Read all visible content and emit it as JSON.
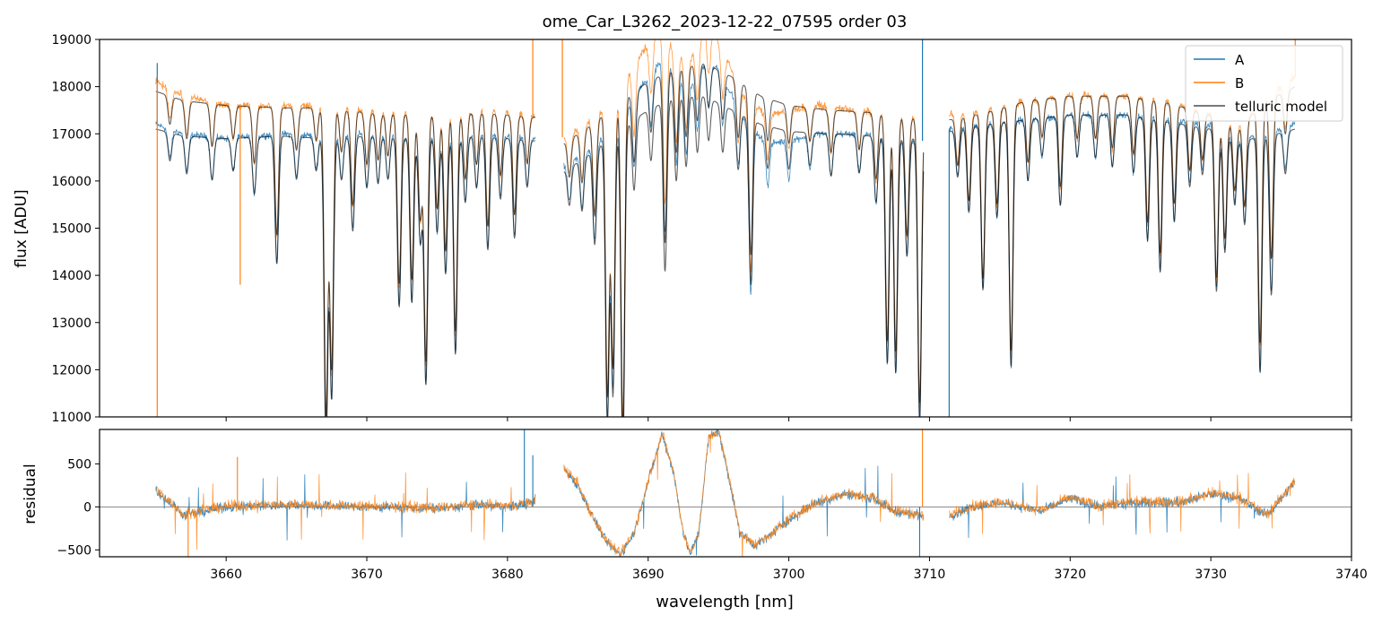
{
  "chart_data": [
    {
      "type": "line",
      "title": "ome_Car_L3262_2023-12-22_07595  order 03",
      "xlabel": "",
      "ylabel": "flux [ADU]",
      "xlim": [
        3651,
        3740
      ],
      "ylim": [
        11000,
        19000
      ],
      "yticks": [
        11000,
        12000,
        13000,
        14000,
        15000,
        16000,
        17000,
        18000,
        19000
      ],
      "xticks": [
        3660,
        3670,
        3680,
        3690,
        3700,
        3710,
        3720,
        3730,
        3740
      ],
      "legend_position": "top-right",
      "legend": [
        "A",
        "B",
        "telluric model"
      ],
      "colors": {
        "A": "#1f77b4",
        "B": "#ff7f0e",
        "model": "#000000"
      },
      "continuum_A": [
        [
          3655.0,
          17200
        ],
        [
          3657.0,
          17000
        ],
        [
          3660.0,
          16900
        ],
        [
          3664.0,
          17000
        ],
        [
          3667.0,
          16950
        ],
        [
          3670.0,
          17000
        ],
        [
          3674.0,
          16900
        ],
        [
          3678.0,
          17000
        ],
        [
          3682.0,
          16900
        ],
        [
          3684.0,
          16300
        ],
        [
          3686.0,
          16700
        ],
        [
          3688.0,
          17300
        ],
        [
          3689.0,
          17800
        ],
        [
          3690.0,
          18200
        ],
        [
          3691.0,
          18600
        ],
        [
          3692.0,
          18200
        ],
        [
          3693.0,
          18000
        ],
        [
          3694.0,
          18500
        ],
        [
          3695.0,
          18400
        ],
        [
          3696.0,
          17800
        ],
        [
          3697.0,
          17200
        ],
        [
          3698.5,
          16800
        ],
        [
          3700.0,
          16850
        ],
        [
          3702.0,
          17000
        ],
        [
          3705.0,
          17000
        ],
        [
          3707.0,
          16900
        ],
        [
          3709.5,
          16850
        ],
        [
          3711.5,
          17100
        ],
        [
          3714.0,
          17200
        ],
        [
          3717.0,
          17300
        ],
        [
          3720.0,
          17400
        ],
        [
          3724.0,
          17400
        ],
        [
          3727.0,
          17300
        ],
        [
          3730.0,
          17200
        ],
        [
          3732.0,
          16900
        ],
        [
          3734.0,
          17000
        ],
        [
          3736.0,
          17200
        ]
      ],
      "continuum_B": [
        [
          3655.0,
          18100
        ],
        [
          3657.0,
          17800
        ],
        [
          3660.0,
          17600
        ],
        [
          3664.0,
          17600
        ],
        [
          3667.0,
          17600
        ],
        [
          3670.0,
          17500
        ],
        [
          3674.0,
          17400
        ],
        [
          3678.0,
          17500
        ],
        [
          3682.0,
          17400
        ],
        [
          3684.0,
          16900
        ],
        [
          3686.0,
          17300
        ],
        [
          3688.0,
          17900
        ],
        [
          3689.0,
          18500
        ],
        [
          3690.0,
          18900
        ],
        [
          3691.0,
          19300
        ],
        [
          3692.0,
          18700
        ],
        [
          3693.0,
          18600
        ],
        [
          3694.0,
          19300
        ],
        [
          3695.0,
          19000
        ],
        [
          3696.0,
          18300
        ],
        [
          3697.0,
          17700
        ],
        [
          3698.5,
          17400
        ],
        [
          3700.0,
          17500
        ],
        [
          3702.0,
          17600
        ],
        [
          3705.0,
          17500
        ],
        [
          3707.0,
          17400
        ],
        [
          3709.5,
          17300
        ],
        [
          3711.5,
          17400
        ],
        [
          3714.0,
          17500
        ],
        [
          3717.0,
          17700
        ],
        [
          3720.0,
          17800
        ],
        [
          3724.0,
          17800
        ],
        [
          3727.0,
          17700
        ],
        [
          3730.0,
          17400
        ],
        [
          3732.0,
          17200
        ],
        [
          3734.0,
          17800
        ],
        [
          3736.0,
          18200
        ]
      ],
      "continuum_model_B": [
        [
          3655.0,
          17900
        ],
        [
          3657.0,
          17700
        ],
        [
          3660.0,
          17600
        ],
        [
          3664.0,
          17550
        ],
        [
          3667.0,
          17550
        ],
        [
          3670.0,
          17450
        ],
        [
          3674.0,
          17400
        ],
        [
          3678.0,
          17450
        ],
        [
          3682.0,
          17350
        ],
        [
          3684.0,
          16800
        ],
        [
          3686.0,
          17200
        ],
        [
          3688.0,
          17700
        ],
        [
          3690.0,
          18100
        ],
        [
          3692.0,
          18400
        ],
        [
          3694.0,
          18500
        ],
        [
          3696.0,
          18200
        ],
        [
          3698.0,
          17800
        ],
        [
          3700.0,
          17600
        ],
        [
          3703.0,
          17500
        ],
        [
          3706.0,
          17450
        ],
        [
          3709.5,
          17300
        ],
        [
          3711.5,
          17300
        ],
        [
          3714.0,
          17450
        ],
        [
          3717.0,
          17700
        ],
        [
          3720.0,
          17800
        ],
        [
          3724.0,
          17800
        ],
        [
          3727.0,
          17650
        ],
        [
          3730.0,
          17400
        ],
        [
          3732.0,
          17150
        ],
        [
          3734.0,
          17700
        ],
        [
          3736.0,
          18000
        ]
      ],
      "continuum_model_A": [
        [
          3655.0,
          17100
        ],
        [
          3657.0,
          16950
        ],
        [
          3660.0,
          16900
        ],
        [
          3664.0,
          16950
        ],
        [
          3667.0,
          16900
        ],
        [
          3670.0,
          16950
        ],
        [
          3674.0,
          16900
        ],
        [
          3678.0,
          16950
        ],
        [
          3682.0,
          16850
        ],
        [
          3684.0,
          16200
        ],
        [
          3686.0,
          16600
        ],
        [
          3688.0,
          17100
        ],
        [
          3690.0,
          17500
        ],
        [
          3692.0,
          17800
        ],
        [
          3694.0,
          17800
        ],
        [
          3696.0,
          17500
        ],
        [
          3698.0,
          17200
        ],
        [
          3700.0,
          17050
        ],
        [
          3703.0,
          17000
        ],
        [
          3706.0,
          16950
        ],
        [
          3709.5,
          16900
        ],
        [
          3711.5,
          17050
        ],
        [
          3714.0,
          17200
        ],
        [
          3717.0,
          17300
        ],
        [
          3720.0,
          17400
        ],
        [
          3724.0,
          17400
        ],
        [
          3727.0,
          17250
        ],
        [
          3730.0,
          17100
        ],
        [
          3732.0,
          16850
        ],
        [
          3734.0,
          16950
        ],
        [
          3736.0,
          17100
        ]
      ],
      "gaps": [
        [
          3682.0,
          3684.0
        ],
        [
          3709.6,
          3711.4
        ]
      ],
      "absorption_lines": [
        [
          3656.0,
          600
        ],
        [
          3657.2,
          800
        ],
        [
          3659.0,
          900
        ],
        [
          3660.5,
          700
        ],
        [
          3662.0,
          1200
        ],
        [
          3663.6,
          2700
        ],
        [
          3665.0,
          900
        ],
        [
          3666.4,
          700
        ],
        [
          3667.1,
          6500
        ],
        [
          3667.5,
          5500
        ],
        [
          3668.2,
          900
        ],
        [
          3669.0,
          2000
        ],
        [
          3670.0,
          1100
        ],
        [
          3670.8,
          1000
        ],
        [
          3671.5,
          900
        ],
        [
          3672.3,
          3600
        ],
        [
          3673.2,
          3500
        ],
        [
          3673.8,
          2200
        ],
        [
          3674.2,
          5200
        ],
        [
          3675.0,
          2000
        ],
        [
          3675.6,
          2900
        ],
        [
          3676.3,
          4600
        ],
        [
          3677.0,
          1400
        ],
        [
          3677.8,
          1100
        ],
        [
          3678.6,
          2400
        ],
        [
          3679.5,
          1300
        ],
        [
          3680.5,
          2100
        ],
        [
          3681.4,
          1000
        ],
        [
          3684.4,
          800
        ],
        [
          3685.3,
          1100
        ],
        [
          3686.2,
          2000
        ],
        [
          3687.1,
          6000
        ],
        [
          3687.5,
          5500
        ],
        [
          3688.2,
          7000
        ],
        [
          3689.0,
          1500
        ],
        [
          3690.2,
          1100
        ],
        [
          3691.2,
          3600
        ],
        [
          3692.0,
          1800
        ],
        [
          3692.7,
          1500
        ],
        [
          3693.5,
          1200
        ],
        [
          3694.3,
          900
        ],
        [
          3695.3,
          1000
        ],
        [
          3696.4,
          1200
        ],
        [
          3697.3,
          3500
        ],
        [
          3698.5,
          900
        ],
        [
          3700.0,
          800
        ],
        [
          3701.5,
          700
        ],
        [
          3703.0,
          900
        ],
        [
          3705.0,
          800
        ],
        [
          3706.2,
          1400
        ],
        [
          3707.0,
          4800
        ],
        [
          3707.6,
          5000
        ],
        [
          3708.4,
          2500
        ],
        [
          3709.3,
          6000
        ],
        [
          3712.0,
          1000
        ],
        [
          3712.8,
          1800
        ],
        [
          3713.8,
          3500
        ],
        [
          3714.8,
          2000
        ],
        [
          3715.8,
          5200
        ],
        [
          3717.0,
          1300
        ],
        [
          3718.0,
          800
        ],
        [
          3719.3,
          1900
        ],
        [
          3720.5,
          900
        ],
        [
          3721.8,
          900
        ],
        [
          3723.0,
          1100
        ],
        [
          3724.5,
          1200
        ],
        [
          3725.5,
          2600
        ],
        [
          3726.4,
          3200
        ],
        [
          3727.4,
          2100
        ],
        [
          3728.5,
          1300
        ],
        [
          3729.4,
          1000
        ],
        [
          3730.4,
          3400
        ],
        [
          3731.0,
          2500
        ],
        [
          3731.7,
          1400
        ],
        [
          3732.4,
          1800
        ],
        [
          3733.5,
          5000
        ],
        [
          3734.3,
          3400
        ],
        [
          3735.3,
          900
        ]
      ],
      "spikes": [
        {
          "x": 3655.1,
          "series": "A",
          "y": 18500
        },
        {
          "x": 3655.1,
          "series": "B",
          "y": 11000
        },
        {
          "x": 3661.0,
          "series": "B",
          "y": 13800
        },
        {
          "x": 3681.8,
          "series": "B",
          "y": 19000
        },
        {
          "x": 3683.9,
          "series": "B",
          "y": 19000
        },
        {
          "x": 3709.5,
          "series": "A",
          "y": 19000
        },
        {
          "x": 3711.4,
          "series": "A",
          "y": 11000
        },
        {
          "x": 3736.0,
          "series": "B",
          "y": 19000
        }
      ]
    },
    {
      "type": "line",
      "title": "",
      "xlabel": "wavelength [nm]",
      "ylabel": "residual",
      "xlim": [
        3651,
        3740
      ],
      "ylim": [
        -580,
        900
      ],
      "yticks": [
        -500,
        0,
        500
      ],
      "xticks": [
        3660,
        3670,
        3680,
        3690,
        3700,
        3710,
        3720,
        3730,
        3740
      ],
      "zero_line": true,
      "residual_trend": [
        [
          3655.0,
          200
        ],
        [
          3656.0,
          50
        ],
        [
          3657.0,
          -100
        ],
        [
          3658.5,
          -50
        ],
        [
          3660.0,
          0
        ],
        [
          3665.0,
          20
        ],
        [
          3670.0,
          0
        ],
        [
          3675.0,
          -20
        ],
        [
          3678.0,
          20
        ],
        [
          3680.0,
          0
        ],
        [
          3681.9,
          50
        ],
        [
          3684.0,
          450
        ],
        [
          3685.0,
          250
        ],
        [
          3686.0,
          -100
        ],
        [
          3687.0,
          -400
        ],
        [
          3688.0,
          -560
        ],
        [
          3689.0,
          -300
        ],
        [
          3690.0,
          300
        ],
        [
          3691.0,
          850
        ],
        [
          3691.8,
          400
        ],
        [
          3692.5,
          -300
        ],
        [
          3693.0,
          -550
        ],
        [
          3693.6,
          -300
        ],
        [
          3694.3,
          800
        ],
        [
          3695.0,
          880
        ],
        [
          3695.8,
          300
        ],
        [
          3696.5,
          -300
        ],
        [
          3697.5,
          -450
        ],
        [
          3698.5,
          -350
        ],
        [
          3700.0,
          -150
        ],
        [
          3702.0,
          50
        ],
        [
          3704.0,
          150
        ],
        [
          3706.0,
          100
        ],
        [
          3707.5,
          -50
        ],
        [
          3709.5,
          -100
        ],
        [
          3711.5,
          -100
        ],
        [
          3713.0,
          0
        ],
        [
          3715.0,
          50
        ],
        [
          3718.0,
          -50
        ],
        [
          3720.0,
          100
        ],
        [
          3722.0,
          0
        ],
        [
          3725.0,
          50
        ],
        [
          3728.0,
          50
        ],
        [
          3730.0,
          150
        ],
        [
          3732.0,
          100
        ],
        [
          3734.0,
          -100
        ],
        [
          3735.0,
          100
        ],
        [
          3736.0,
          300
        ]
      ],
      "residual_spikes": [
        {
          "x": 3681.2,
          "series": "A",
          "y": 900
        },
        {
          "x": 3681.8,
          "series": "A",
          "y": 600
        },
        {
          "x": 3657.3,
          "series": "B",
          "y": -580
        },
        {
          "x": 3660.8,
          "series": "B",
          "y": 580
        },
        {
          "x": 3709.3,
          "series": "A",
          "y": -580
        },
        {
          "x": 3709.5,
          "series": "B",
          "y": 900
        }
      ]
    }
  ]
}
